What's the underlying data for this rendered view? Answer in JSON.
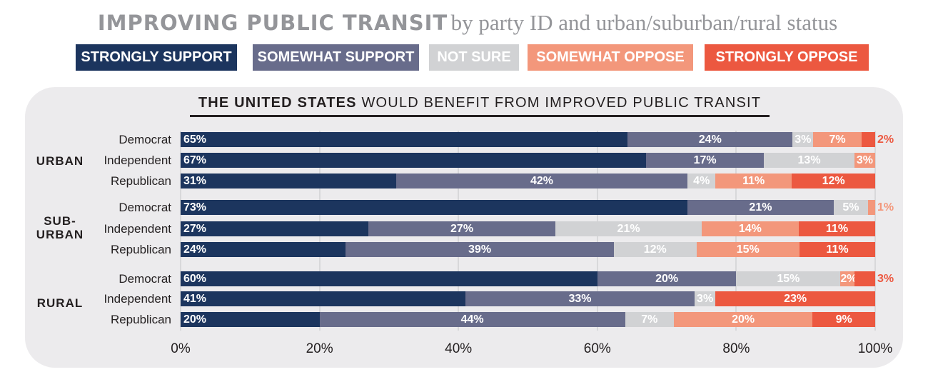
{
  "chart_data": {
    "type": "bar",
    "stacked": true,
    "orientation": "horizontal",
    "title": "IMPROVING PUBLIC TRANSIT",
    "title_suffix": "by party ID and urban/suburban/rural status",
    "subtitle_bold": "THE UNITED STATES",
    "subtitle_rest": "WOULD BENEFIT FROM IMPROVED PUBLIC TRANSIT",
    "xlim": [
      0,
      100
    ],
    "x_ticks": [
      "0%",
      "20%",
      "40%",
      "60%",
      "80%",
      "100%"
    ],
    "grid": true,
    "legend_position": "top",
    "series": [
      {
        "name": "STRONGLY SUPPORT",
        "color": "#1c355e"
      },
      {
        "name": "SOMEWHAT SUPPORT",
        "color": "#686c8b"
      },
      {
        "name": "NOT SURE",
        "color": "#d1d2d4"
      },
      {
        "name": "SOMEWHAT OPPOSE",
        "color": "#f3977b"
      },
      {
        "name": "STRONGLY OPPOSE",
        "color": "#ec5840"
      }
    ],
    "groups": [
      {
        "label": [
          "URBAN"
        ],
        "rows": [
          {
            "party": "Democrat",
            "values": [
              65,
              24,
              3,
              7,
              2
            ]
          },
          {
            "party": "Independent",
            "values": [
              67,
              17,
              13,
              3,
              0
            ]
          },
          {
            "party": "Republican",
            "values": [
              31,
              42,
              4,
              11,
              12
            ]
          }
        ]
      },
      {
        "label": [
          "SUB-",
          "URBAN"
        ],
        "rows": [
          {
            "party": "Democrat",
            "values": [
              73,
              21,
              5,
              1,
              0
            ]
          },
          {
            "party": "Independent",
            "values": [
              27,
              27,
              21,
              14,
              11
            ]
          },
          {
            "party": "Republican",
            "values": [
              24,
              39,
              12,
              15,
              11
            ]
          }
        ]
      },
      {
        "label": [
          "RURAL"
        ],
        "rows": [
          {
            "party": "Democrat",
            "values": [
              60,
              20,
              15,
              2,
              3
            ]
          },
          {
            "party": "Independent",
            "values": [
              41,
              33,
              3,
              0,
              23
            ]
          },
          {
            "party": "Republican",
            "values": [
              20,
              44,
              7,
              20,
              9
            ]
          }
        ]
      }
    ]
  }
}
